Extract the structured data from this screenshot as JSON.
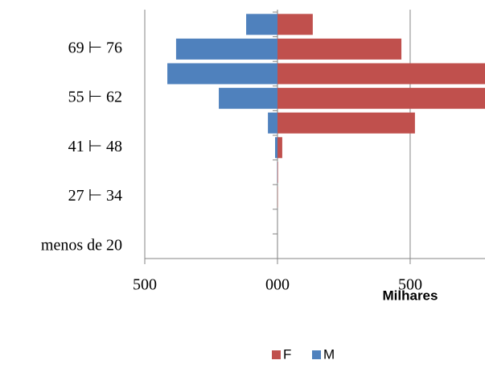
{
  "chart_data": {
    "type": "bar",
    "orientation": "horizontal",
    "stacked": "diverging",
    "categories": [
      "menos de 20",
      null,
      "27 ⊢ 34",
      null,
      "41 ⊢ 48",
      null,
      "55 ⊢ 62",
      null,
      "69 ⊢ 76",
      null
    ],
    "series": [
      {
        "name": "F",
        "color": "#c0504d",
        "values": [
          0,
          0,
          1,
          2,
          18,
          518,
          790,
          800,
          467,
          133
        ]
      },
      {
        "name": "M",
        "color": "#4f81bd",
        "values": [
          0,
          0,
          0,
          -1,
          -9,
          -36,
          -221,
          -415,
          -382,
          -118
        ]
      }
    ],
    "xlim": [
      -500,
      782
    ],
    "xticks": [
      {
        "value": -500,
        "label": "500"
      },
      {
        "value": 0,
        "label": "000"
      },
      {
        "value": 500,
        "label": "500"
      }
    ],
    "xlabel": "Milhares",
    "grid": true,
    "legend": "bottom"
  }
}
